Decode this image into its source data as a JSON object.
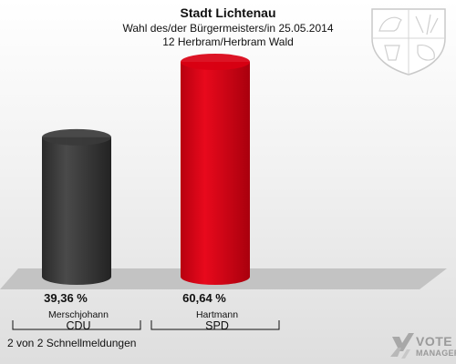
{
  "header": {
    "title": "Stadt Lichtenau",
    "subtitle": "Wahl des/der Bürgermeisters/in  25.05.2014",
    "district": "12 Herbram/Herbram Wald"
  },
  "footer": {
    "status": "2 von 2 Schnellmeldungen"
  },
  "logo": {
    "line1": "VOTE",
    "line2": "MANAGER"
  },
  "chart_data": {
    "type": "bar",
    "categories": [
      "CDU",
      "SPD"
    ],
    "candidates": [
      "Merschjohann",
      "Hartmann"
    ],
    "values": [
      39.36,
      60.64
    ],
    "value_labels": [
      "39,36 %",
      "60,64 %"
    ],
    "colors": [
      "#3a3a3a",
      "#d90012"
    ],
    "unit": "%",
    "ylim": [
      0,
      60.64
    ],
    "grid": false,
    "legend": "none"
  }
}
